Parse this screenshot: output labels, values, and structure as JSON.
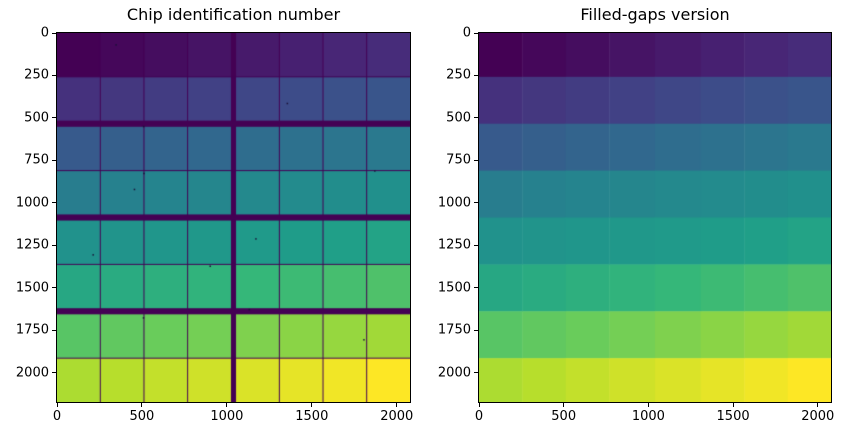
{
  "figure": {
    "background": "#ffffff"
  },
  "colormap": {
    "name": "viridis",
    "anchors": [
      [
        0.0,
        "#440154"
      ],
      [
        0.1,
        "#482878"
      ],
      [
        0.2,
        "#3e4a89"
      ],
      [
        0.3,
        "#31688e"
      ],
      [
        0.4,
        "#26828e"
      ],
      [
        0.5,
        "#21918c"
      ],
      [
        0.6,
        "#1f9e89"
      ],
      [
        0.7,
        "#35b779"
      ],
      [
        0.8,
        "#6dcd59"
      ],
      [
        0.9,
        "#b4de2c"
      ],
      [
        1.0,
        "#fde725"
      ]
    ]
  },
  "chart_data": [
    {
      "type": "heatmap",
      "title": "Chip identification number",
      "grid_shape": [
        8,
        8
      ],
      "values": [
        [
          0,
          1,
          2,
          3,
          4,
          5,
          6,
          7
        ],
        [
          8,
          9,
          10,
          11,
          12,
          13,
          14,
          15
        ],
        [
          16,
          17,
          18,
          19,
          20,
          21,
          22,
          23
        ],
        [
          24,
          25,
          26,
          27,
          28,
          29,
          30,
          31
        ],
        [
          32,
          33,
          34,
          35,
          36,
          37,
          38,
          39
        ],
        [
          40,
          41,
          42,
          43,
          44,
          45,
          46,
          47
        ],
        [
          48,
          49,
          50,
          51,
          52,
          53,
          54,
          55
        ],
        [
          56,
          57,
          58,
          59,
          60,
          61,
          62,
          63
        ]
      ],
      "value_range": [
        0,
        63
      ],
      "chip_width": 253,
      "chip_height": 256,
      "x_gaps": [
        4,
        4,
        4,
        30,
        4,
        4,
        4
      ],
      "y_gaps": [
        4,
        36,
        4,
        36,
        4,
        36,
        4
      ],
      "gaps_filled": false,
      "gap_value": 0,
      "xticks": [
        0,
        500,
        1000,
        1500,
        2000
      ],
      "yticks": [
        0,
        250,
        500,
        750,
        1000,
        1250,
        1500,
        1750,
        2000
      ],
      "bad_pixels": [
        [
          348,
          70
        ],
        [
          1356,
          415
        ],
        [
          510,
          551
        ],
        [
          1871,
          812
        ],
        [
          512,
          827
        ],
        [
          456,
          921
        ],
        [
          1171,
          1212
        ],
        [
          213,
          1306
        ],
        [
          902,
          1373
        ],
        [
          509,
          1677
        ],
        [
          1132,
          1628
        ],
        [
          1807,
          1806
        ]
      ],
      "bad_pixel_color": "#1a1138"
    },
    {
      "type": "heatmap",
      "title": "Filled-gaps version",
      "grid_shape": [
        8,
        8
      ],
      "values": [
        [
          0,
          1,
          2,
          3,
          4,
          5,
          6,
          7
        ],
        [
          8,
          9,
          10,
          11,
          12,
          13,
          14,
          15
        ],
        [
          16,
          17,
          18,
          19,
          20,
          21,
          22,
          23
        ],
        [
          24,
          25,
          26,
          27,
          28,
          29,
          30,
          31
        ],
        [
          32,
          33,
          34,
          35,
          36,
          37,
          38,
          39
        ],
        [
          40,
          41,
          42,
          43,
          44,
          45,
          46,
          47
        ],
        [
          48,
          49,
          50,
          51,
          52,
          53,
          54,
          55
        ],
        [
          56,
          57,
          58,
          59,
          60,
          61,
          62,
          63
        ]
      ],
      "value_range": [
        0,
        63
      ],
      "chip_width": 253,
      "chip_height": 256,
      "x_gaps": [
        4,
        4,
        4,
        30,
        4,
        4,
        4
      ],
      "y_gaps": [
        4,
        36,
        4,
        36,
        4,
        36,
        4
      ],
      "gaps_filled": true,
      "xticks": [
        0,
        500,
        1000,
        1500,
        2000
      ],
      "yticks": [
        0,
        250,
        500,
        750,
        1000,
        1250,
        1500,
        1750,
        2000
      ],
      "bad_pixels": []
    }
  ]
}
